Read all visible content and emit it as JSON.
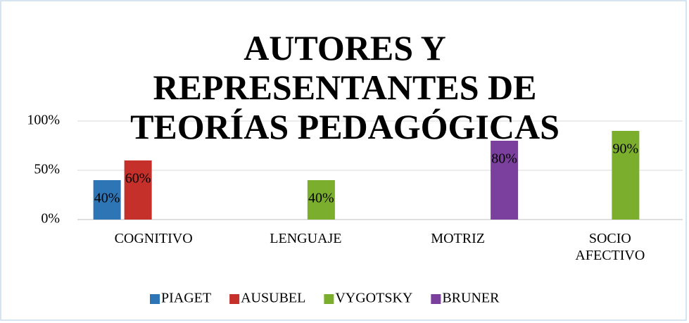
{
  "chart_data": {
    "type": "bar",
    "title": "AUTORES Y REPRESENTANTES DE TEORÍAS PEDAGÓGICAS",
    "categories": [
      "COGNITIVO",
      "LENGUAJE",
      "MOTRIZ",
      "SOCIO AFECTIVO"
    ],
    "series": [
      {
        "name": "PIAGET",
        "color": "#2e75b6",
        "values": [
          40,
          null,
          null,
          null
        ],
        "value_labels": [
          "40%",
          null,
          null,
          null
        ]
      },
      {
        "name": "AUSUBEL",
        "color": "#c5302b",
        "values": [
          60,
          null,
          null,
          null
        ],
        "value_labels": [
          "60%",
          null,
          null,
          null
        ]
      },
      {
        "name": "VYGOTSKY",
        "color": "#7cae2e",
        "values": [
          null,
          40,
          null,
          90
        ],
        "value_labels": [
          null,
          "40%",
          null,
          "90%"
        ]
      },
      {
        "name": "BRUNER",
        "color": "#7b3f9e",
        "values": [
          null,
          null,
          80,
          null
        ],
        "value_labels": [
          null,
          null,
          "80%",
          null
        ]
      }
    ],
    "ylim": [
      0,
      100
    ],
    "yticks": [
      {
        "value": 0,
        "label": "0%"
      },
      {
        "value": 50,
        "label": "50%"
      },
      {
        "value": 100,
        "label": "100%"
      }
    ],
    "grid": true,
    "legend": "bottom"
  }
}
